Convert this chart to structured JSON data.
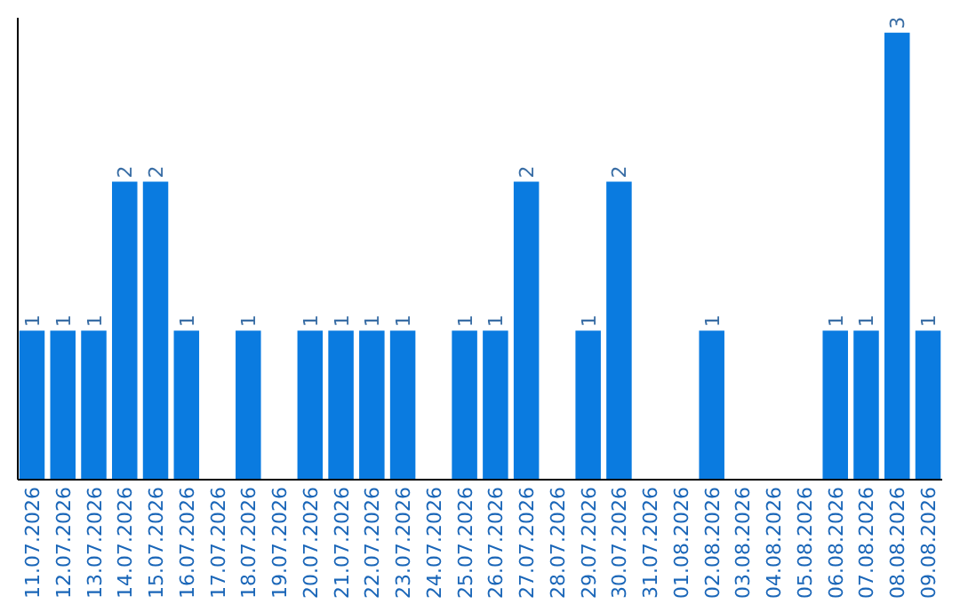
{
  "chart_data": {
    "type": "bar",
    "categories": [
      "11.07.2026",
      "12.07.2026",
      "13.07.2026",
      "14.07.2026",
      "15.07.2026",
      "16.07.2026",
      "17.07.2026",
      "18.07.2026",
      "19.07.2026",
      "20.07.2026",
      "21.07.2026",
      "22.07.2026",
      "23.07.2026",
      "24.07.2026",
      "25.07.2026",
      "26.07.2026",
      "27.07.2026",
      "28.07.2026",
      "29.07.2026",
      "30.07.2026",
      "31.07.2026",
      "01.08.2026",
      "02.08.2026",
      "03.08.2026",
      "04.08.2026",
      "05.08.2026",
      "06.08.2026",
      "07.08.2026",
      "08.08.2026",
      "09.08.2026"
    ],
    "values": [
      1,
      1,
      1,
      2,
      2,
      1,
      null,
      1,
      null,
      1,
      1,
      1,
      1,
      null,
      1,
      1,
      2,
      null,
      1,
      2,
      null,
      null,
      1,
      null,
      null,
      null,
      1,
      1,
      3,
      1
    ],
    "color": "#0a7be0",
    "ylim": [
      0,
      3.1
    ],
    "data_labels": true,
    "tick_labels": "x"
  }
}
